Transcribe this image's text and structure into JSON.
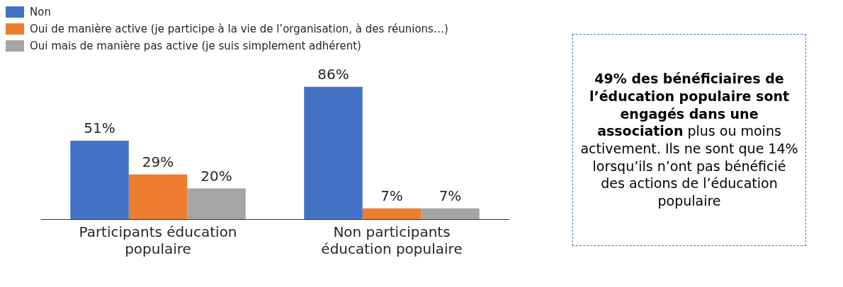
{
  "chart_data": {
    "type": "bar",
    "categories": [
      "Participants éducation populaire",
      "Non participants éducation populaire"
    ],
    "series": [
      {
        "name": "Non",
        "color": "#4472c4",
        "values": [
          51,
          86
        ],
        "value_labels": [
          "51%",
          "86%"
        ]
      },
      {
        "name": "Oui de manière active (je participe à la vie de l’organisation, à des réunions…)",
        "color": "#ed7d31",
        "values": [
          29,
          7
        ],
        "value_labels": [
          "29%",
          "7%"
        ]
      },
      {
        "name": "Oui mais de manière pas active (je suis simplement adhérent)",
        "color": "#a5a5a5",
        "values": [
          20,
          7
        ],
        "value_labels": [
          "20%",
          "7%"
        ]
      }
    ],
    "legend": "top left",
    "grid": false,
    "annotations": [
      "49% des bénéficiaires de l’éducation populaire sont engagés dans une association",
      "plus ou moins activement. Ils ne sont que 14% lorsqu’ils n’ont pas bénéficié des actions de l’éducation populaire"
    ]
  }
}
